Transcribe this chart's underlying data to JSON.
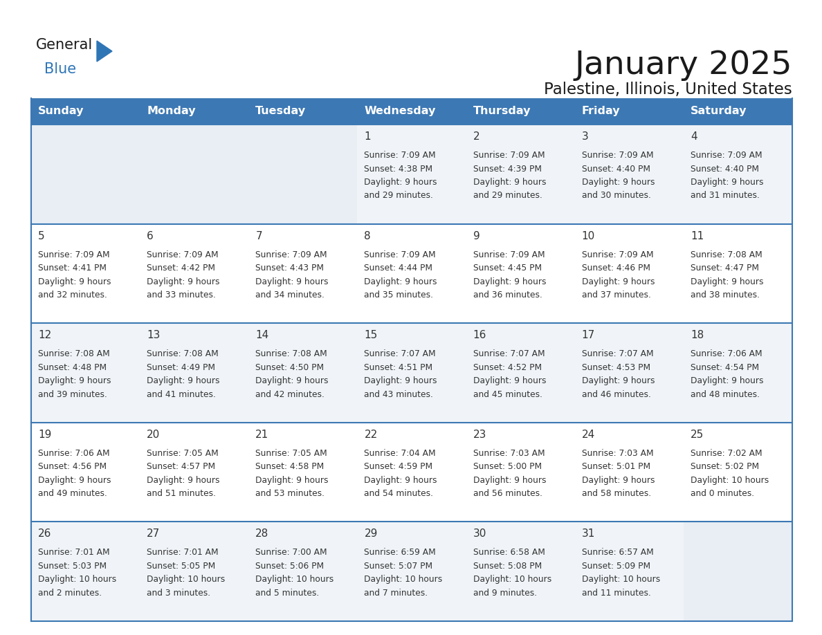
{
  "title": "January 2025",
  "subtitle": "Palestine, Illinois, United States",
  "days_of_week": [
    "Sunday",
    "Monday",
    "Tuesday",
    "Wednesday",
    "Thursday",
    "Friday",
    "Saturday"
  ],
  "header_bg": "#3C78B4",
  "header_text": "#FFFFFF",
  "border_color": "#3C78B4",
  "text_color": "#333333",
  "calendar_data": [
    [
      null,
      null,
      null,
      {
        "day": 1,
        "sunrise": "7:09 AM",
        "sunset": "4:38 PM",
        "dl1": "9 hours",
        "dl2": "and 29 minutes."
      },
      {
        "day": 2,
        "sunrise": "7:09 AM",
        "sunset": "4:39 PM",
        "dl1": "9 hours",
        "dl2": "and 29 minutes."
      },
      {
        "day": 3,
        "sunrise": "7:09 AM",
        "sunset": "4:40 PM",
        "dl1": "9 hours",
        "dl2": "and 30 minutes."
      },
      {
        "day": 4,
        "sunrise": "7:09 AM",
        "sunset": "4:40 PM",
        "dl1": "9 hours",
        "dl2": "and 31 minutes."
      }
    ],
    [
      {
        "day": 5,
        "sunrise": "7:09 AM",
        "sunset": "4:41 PM",
        "dl1": "9 hours",
        "dl2": "and 32 minutes."
      },
      {
        "day": 6,
        "sunrise": "7:09 AM",
        "sunset": "4:42 PM",
        "dl1": "9 hours",
        "dl2": "and 33 minutes."
      },
      {
        "day": 7,
        "sunrise": "7:09 AM",
        "sunset": "4:43 PM",
        "dl1": "9 hours",
        "dl2": "and 34 minutes."
      },
      {
        "day": 8,
        "sunrise": "7:09 AM",
        "sunset": "4:44 PM",
        "dl1": "9 hours",
        "dl2": "and 35 minutes."
      },
      {
        "day": 9,
        "sunrise": "7:09 AM",
        "sunset": "4:45 PM",
        "dl1": "9 hours",
        "dl2": "and 36 minutes."
      },
      {
        "day": 10,
        "sunrise": "7:09 AM",
        "sunset": "4:46 PM",
        "dl1": "9 hours",
        "dl2": "and 37 minutes."
      },
      {
        "day": 11,
        "sunrise": "7:08 AM",
        "sunset": "4:47 PM",
        "dl1": "9 hours",
        "dl2": "and 38 minutes."
      }
    ],
    [
      {
        "day": 12,
        "sunrise": "7:08 AM",
        "sunset": "4:48 PM",
        "dl1": "9 hours",
        "dl2": "and 39 minutes."
      },
      {
        "day": 13,
        "sunrise": "7:08 AM",
        "sunset": "4:49 PM",
        "dl1": "9 hours",
        "dl2": "and 41 minutes."
      },
      {
        "day": 14,
        "sunrise": "7:08 AM",
        "sunset": "4:50 PM",
        "dl1": "9 hours",
        "dl2": "and 42 minutes."
      },
      {
        "day": 15,
        "sunrise": "7:07 AM",
        "sunset": "4:51 PM",
        "dl1": "9 hours",
        "dl2": "and 43 minutes."
      },
      {
        "day": 16,
        "sunrise": "7:07 AM",
        "sunset": "4:52 PM",
        "dl1": "9 hours",
        "dl2": "and 45 minutes."
      },
      {
        "day": 17,
        "sunrise": "7:07 AM",
        "sunset": "4:53 PM",
        "dl1": "9 hours",
        "dl2": "and 46 minutes."
      },
      {
        "day": 18,
        "sunrise": "7:06 AM",
        "sunset": "4:54 PM",
        "dl1": "9 hours",
        "dl2": "and 48 minutes."
      }
    ],
    [
      {
        "day": 19,
        "sunrise": "7:06 AM",
        "sunset": "4:56 PM",
        "dl1": "9 hours",
        "dl2": "and 49 minutes."
      },
      {
        "day": 20,
        "sunrise": "7:05 AM",
        "sunset": "4:57 PM",
        "dl1": "9 hours",
        "dl2": "and 51 minutes."
      },
      {
        "day": 21,
        "sunrise": "7:05 AM",
        "sunset": "4:58 PM",
        "dl1": "9 hours",
        "dl2": "and 53 minutes."
      },
      {
        "day": 22,
        "sunrise": "7:04 AM",
        "sunset": "4:59 PM",
        "dl1": "9 hours",
        "dl2": "and 54 minutes."
      },
      {
        "day": 23,
        "sunrise": "7:03 AM",
        "sunset": "5:00 PM",
        "dl1": "9 hours",
        "dl2": "and 56 minutes."
      },
      {
        "day": 24,
        "sunrise": "7:03 AM",
        "sunset": "5:01 PM",
        "dl1": "9 hours",
        "dl2": "and 58 minutes."
      },
      {
        "day": 25,
        "sunrise": "7:02 AM",
        "sunset": "5:02 PM",
        "dl1": "10 hours",
        "dl2": "and 0 minutes."
      }
    ],
    [
      {
        "day": 26,
        "sunrise": "7:01 AM",
        "sunset": "5:03 PM",
        "dl1": "10 hours",
        "dl2": "and 2 minutes."
      },
      {
        "day": 27,
        "sunrise": "7:01 AM",
        "sunset": "5:05 PM",
        "dl1": "10 hours",
        "dl2": "and 3 minutes."
      },
      {
        "day": 28,
        "sunrise": "7:00 AM",
        "sunset": "5:06 PM",
        "dl1": "10 hours",
        "dl2": "and 5 minutes."
      },
      {
        "day": 29,
        "sunrise": "6:59 AM",
        "sunset": "5:07 PM",
        "dl1": "10 hours",
        "dl2": "and 7 minutes."
      },
      {
        "day": 30,
        "sunrise": "6:58 AM",
        "sunset": "5:08 PM",
        "dl1": "10 hours",
        "dl2": "and 9 minutes."
      },
      {
        "day": 31,
        "sunrise": "6:57 AM",
        "sunset": "5:09 PM",
        "dl1": "10 hours",
        "dl2": "and 11 minutes."
      },
      null
    ]
  ]
}
